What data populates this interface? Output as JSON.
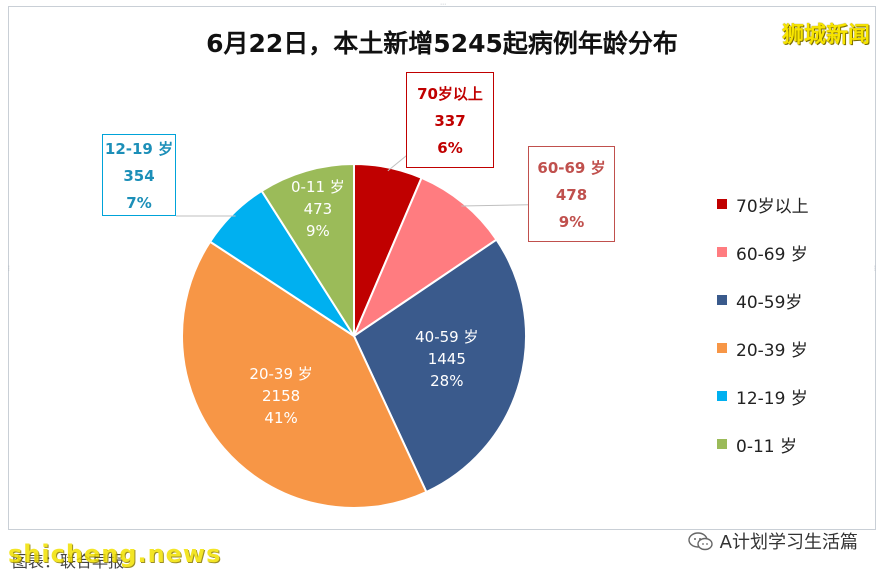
{
  "header": {
    "title": "6月22日，本土新增5245起病例年龄分布",
    "brand": "狮城新闻"
  },
  "footer": {
    "source": "图表：联合早报",
    "watermark": "shicheng.news",
    "wechat_account": "A计划学习生活篇"
  },
  "chart_data": {
    "type": "pie",
    "title": "6月22日，本土新增5245起病例年龄分布",
    "legend_position": "right",
    "slices": [
      {
        "label": "70岁以上",
        "value": 337,
        "percent": "6%",
        "color": "#c00000",
        "legend": "70岁以上",
        "label_style": "callout"
      },
      {
        "label": "60-69 岁",
        "value": 478,
        "percent": "9%",
        "color": "#ff7c80",
        "legend": "60-69 岁",
        "label_style": "callout"
      },
      {
        "label": "40-59 岁",
        "value": 1445,
        "percent": "28%",
        "color": "#3a5a8c",
        "legend": "40-59岁",
        "label_style": "inside"
      },
      {
        "label": "20-39 岁",
        "value": 2158,
        "percent": "41%",
        "color": "#f79646",
        "legend": "20-39 岁",
        "label_style": "inside"
      },
      {
        "label": "12-19 岁",
        "value": 354,
        "percent": "7%",
        "color": "#00b0f0",
        "legend": "12-19 岁",
        "label_style": "callout"
      },
      {
        "label": "0-11 岁",
        "value": 473,
        "percent": "9%",
        "color": "#9bbb59",
        "legend": "0-11 岁",
        "label_style": "inside"
      }
    ]
  }
}
